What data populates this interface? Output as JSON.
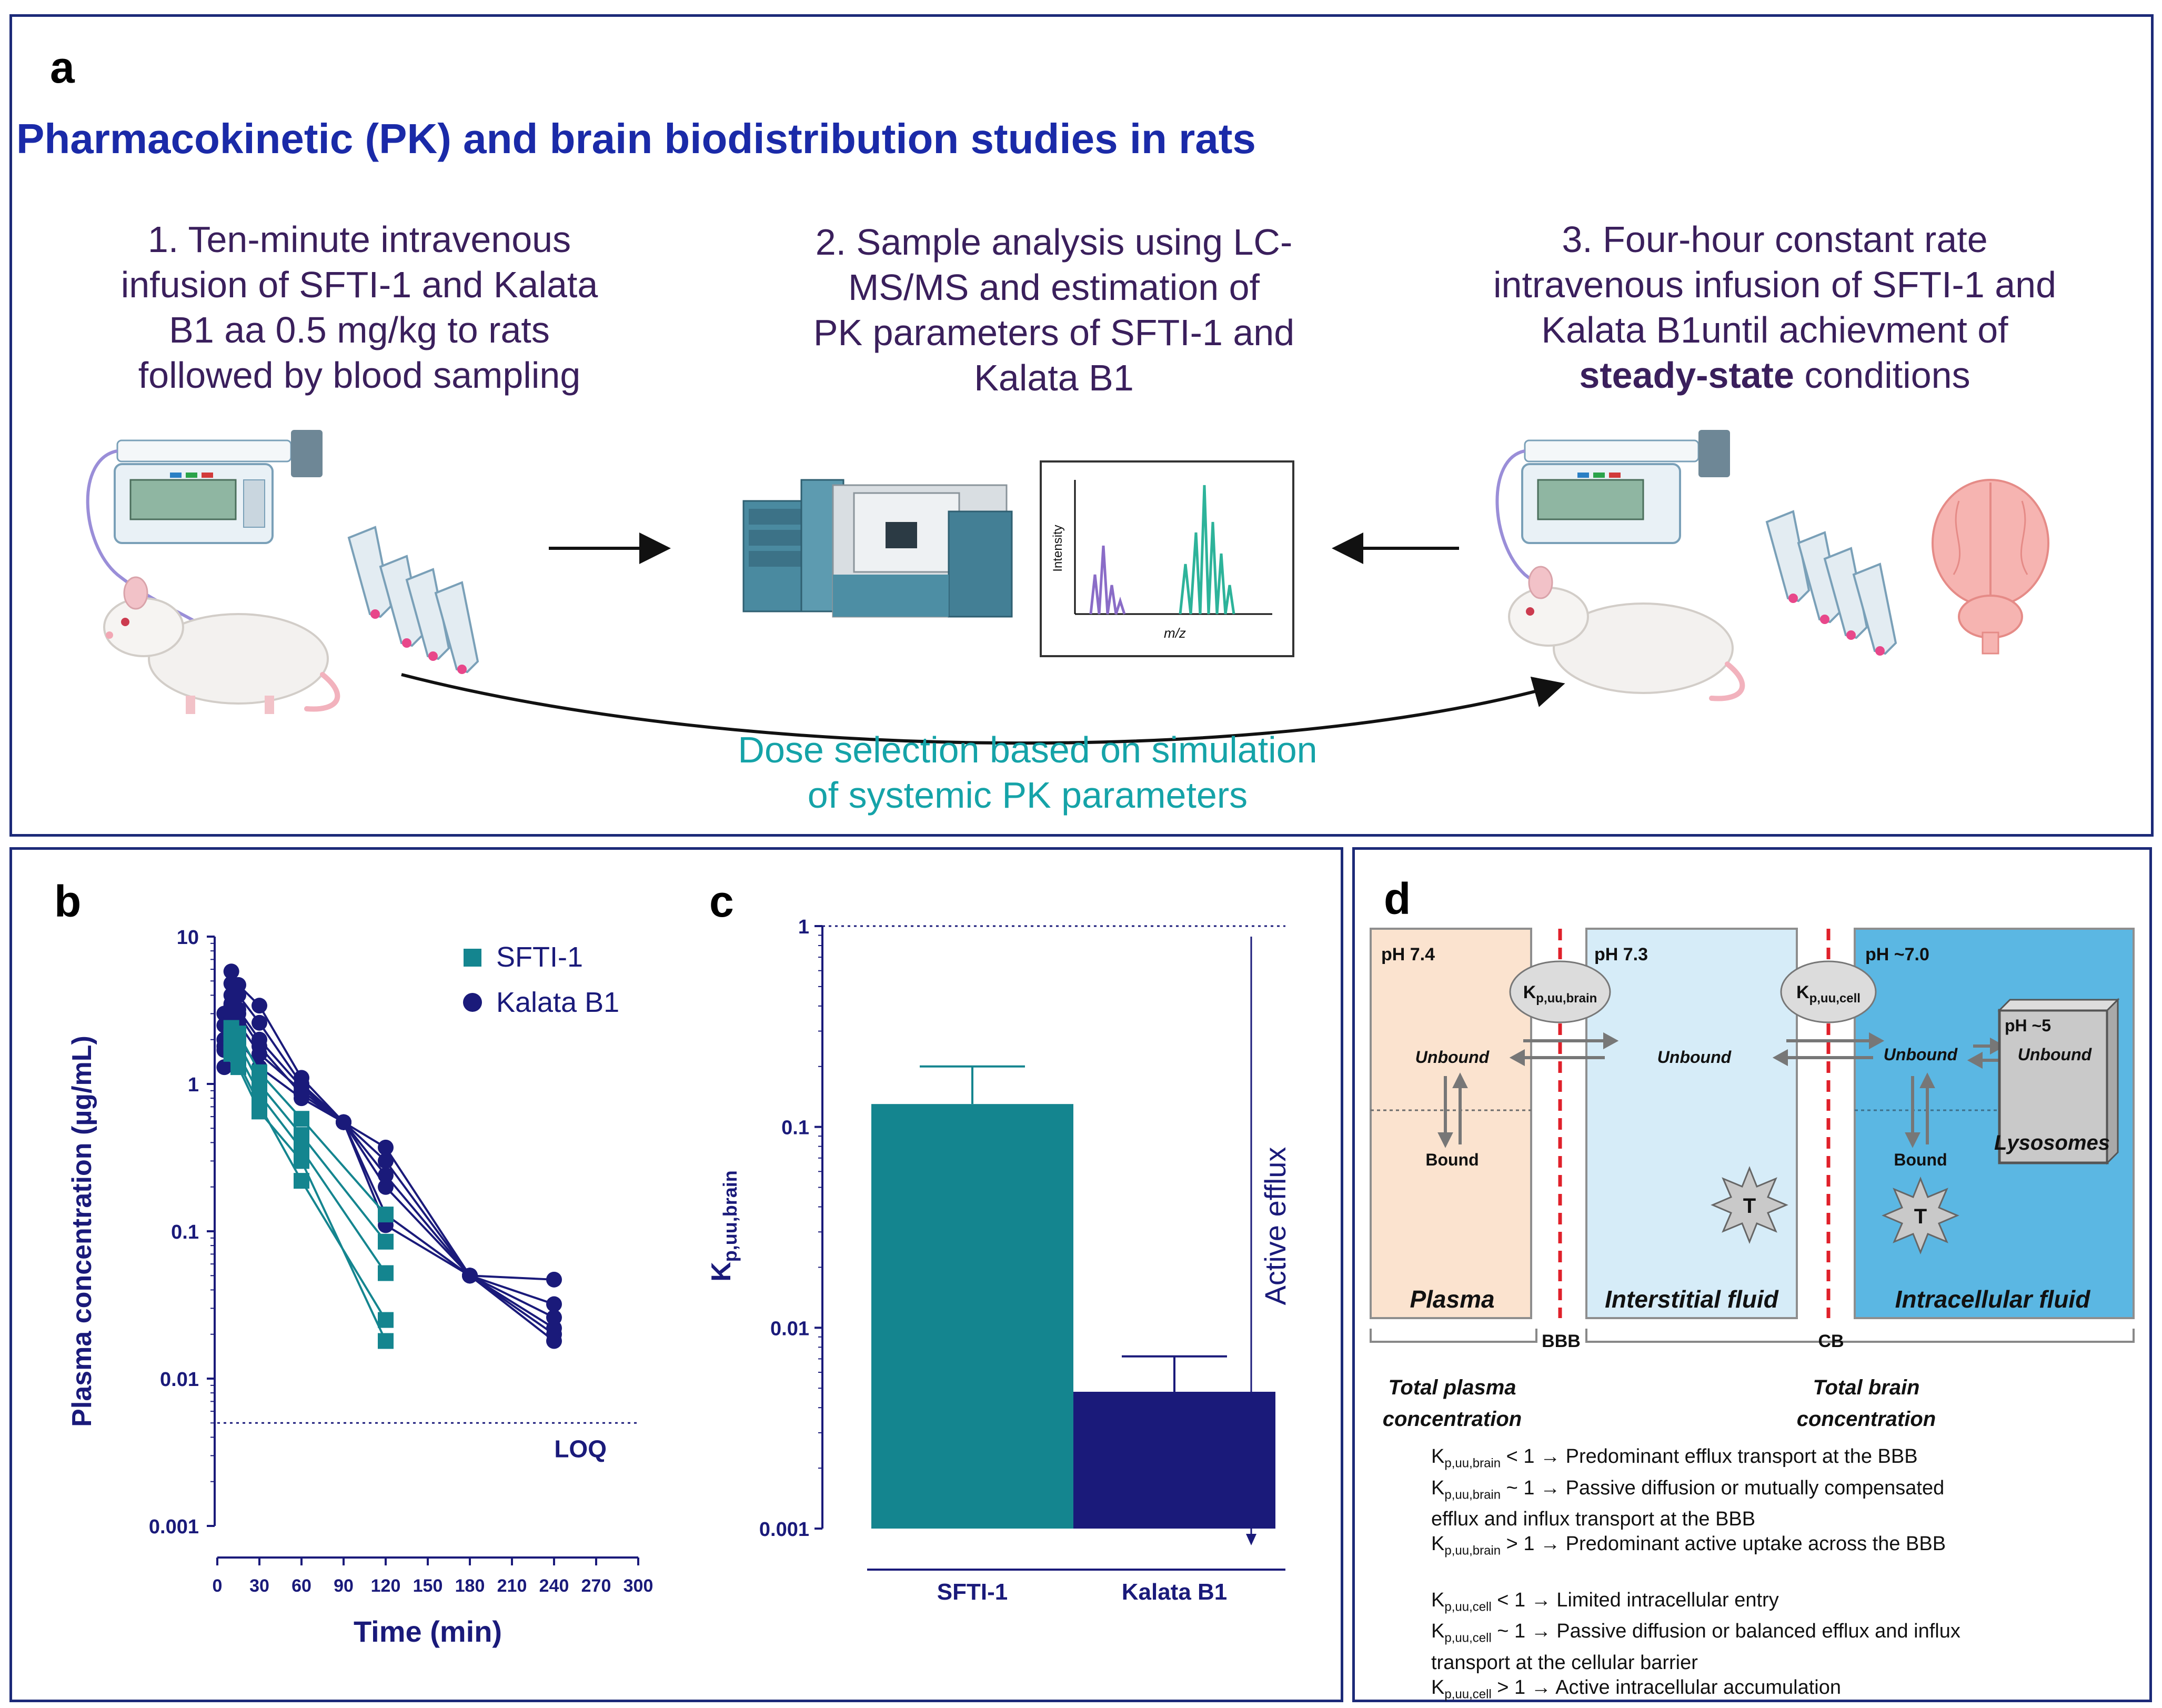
{
  "panel_a": {
    "label": "a",
    "title": "Pharmacokinetic (PK) and brain biodistribution studies in rats",
    "steps": [
      [
        "1. Ten-minute intravenous",
        "infusion of SFTI-1 and Kalata",
        "B1 aa 0.5 mg/kg to rats",
        "followed by blood sampling"
      ],
      [
        "2. Sample analysis using LC-",
        "MS/MS and estimation of",
        "PK parameters of SFTI-1 and",
        "Kalata B1"
      ],
      [
        "3. Four-hour constant rate",
        "intravenous infusion of SFTI-1 and",
        "Kalata B1until achievment of"
      ]
    ],
    "step3_bold": "steady-state",
    "step3_rest": " conditions",
    "spectrum": {
      "ylabel": "Intensity",
      "xlabel": "m/z"
    },
    "dose_selection": [
      "Dose selection based on simulation",
      "of systemic PK parameters"
    ]
  },
  "colors": {
    "teal": "#14858f",
    "navy": "#1a1a7a",
    "title_blue": "#1a2aa8",
    "step_text": "#3a1f5c",
    "dose_text": "#15a3a8"
  },
  "panel_b": {
    "label": "b",
    "loq_label": "LOQ"
  },
  "panel_c": {
    "label": "c",
    "ylabel_main": "K",
    "ylabel_sub": "p,uu,brain",
    "annotation": "Active efflux"
  },
  "chart_data": [
    {
      "type": "line",
      "title": "",
      "xlabel": "Time (min)",
      "ylabel": "Plasma concentration (µg/mL)",
      "yscale": "log",
      "ylim": [
        0.001,
        10
      ],
      "xlim": [
        0,
        300
      ],
      "xticks": [
        0,
        30,
        60,
        90,
        120,
        150,
        180,
        210,
        240,
        270,
        300
      ],
      "yticks": [
        0.001,
        0.01,
        0.1,
        1,
        10
      ],
      "ytick_labels": [
        "0.001",
        "0.01",
        "0.1",
        "1",
        "10"
      ],
      "loq": 0.005,
      "legend": [
        "SFTI-1",
        "Kalata B1"
      ],
      "series": [
        {
          "name": "SFTI-1",
          "marker": "square",
          "color": "#14858f",
          "x": [
            10,
            15,
            30,
            60,
            120
          ],
          "subjects": [
            [
              2.4,
              2.2,
              1.2,
              0.58,
              0.13
            ],
            [
              2.1,
              1.9,
              1.0,
              0.45,
              0.085
            ],
            [
              1.9,
              1.6,
              0.85,
              0.36,
              0.052
            ],
            [
              1.7,
              1.4,
              0.72,
              0.22,
              0.025
            ],
            [
              1.6,
              1.3,
              0.65,
              0.3,
              0.018
            ]
          ]
        },
        {
          "name": "Kalata B1",
          "marker": "circle",
          "color": "#1a1a7a",
          "x": [
            5,
            10,
            15,
            30,
            60,
            90,
            120,
            180,
            240
          ],
          "subjects": [
            [
              3.0,
              5.8,
              4.7,
              3.4,
              1.1,
              0.55,
              0.37,
              0.05,
              0.047
            ],
            [
              2.5,
              4.8,
              4.0,
              2.6,
              1.0,
              0.55,
              0.3,
              0.05,
              0.032
            ],
            [
              2.0,
              4.0,
              3.2,
              2.0,
              0.95,
              0.55,
              0.24,
              0.05,
              0.026
            ],
            [
              1.7,
              3.4,
              2.6,
              1.6,
              0.9,
              0.55,
              0.2,
              0.05,
              0.022
            ],
            [
              1.3,
              2.8,
              2.0,
              1.3,
              0.8,
              0.55,
              0.13,
              0.05,
              0.018
            ],
            [
              1.8,
              3.5,
              3.0,
              1.8,
              0.85,
              0.55,
              0.11,
              0.05,
              0.02
            ]
          ]
        }
      ]
    },
    {
      "type": "bar",
      "title": "",
      "xlabel": "",
      "ylabel": "Kp,uu,brain",
      "yscale": "log",
      "ylim": [
        0.001,
        1
      ],
      "yticks": [
        0.001,
        0.01,
        0.1,
        1
      ],
      "ytick_labels": [
        "0.001",
        "0.01",
        "0.1",
        "1"
      ],
      "reference_line": 1,
      "categories": [
        "SFTI-1",
        "Kalata B1"
      ],
      "values": [
        0.13,
        0.0048
      ],
      "error_upper": [
        0.2,
        0.0072
      ],
      "colors": [
        "#14858f",
        "#1a1a7a"
      ]
    }
  ],
  "panel_d": {
    "label": "d",
    "compartments": [
      {
        "ph": "pH 7.4",
        "name": "Plasma",
        "unbound": "Unbound",
        "bound": "Bound"
      },
      {
        "ph": "pH 7.3",
        "name": "Interstitial fluid",
        "unbound": "Unbound",
        "target": "T"
      },
      {
        "ph": "pH ~7.0",
        "name": "Intracellular fluid",
        "unbound": "Unbound",
        "bound": "Bound",
        "target": "T"
      }
    ],
    "lysosome": {
      "ph": "pH ~5",
      "unbound": "Unbound",
      "name": "Lysosomes"
    },
    "kp_brain_main": "K",
    "kp_brain_sub": "p,uu,brain",
    "kp_cell_main": "K",
    "kp_cell_sub": "p,uu,cell",
    "barrier_bbb": "BBB",
    "barrier_cb": "CB",
    "total_plasma": [
      "Total plasma",
      "concentration"
    ],
    "total_brain": [
      "Total brain",
      "concentration"
    ],
    "notes": [
      {
        "k": "K",
        "sub": "p,uu,brain",
        "lines": [
          " < 1 → Predominant efflux transport at the BBB"
        ]
      },
      {
        "k": "K",
        "sub": "p,uu,brain",
        "lines": [
          " ~ 1 → Passive diffusion or mutually compensated",
          "efflux and influx transport at the BBB"
        ]
      },
      {
        "k": "K",
        "sub": "p,uu,brain",
        "lines": [
          " > 1 → Predominant active uptake across the BBB"
        ]
      },
      {
        "k": "K",
        "sub": "p,uu,cell",
        "lines": [
          " < 1 → Limited intracellular entry"
        ]
      },
      {
        "k": "K",
        "sub": "p,uu,cell",
        "lines": [
          " ~ 1 → Passive diffusion or balanced efflux and influx",
          "transport at the cellular barrier"
        ]
      },
      {
        "k": "K",
        "sub": "p,uu,cell",
        "lines": [
          " > 1 → Active intracellular accumulation"
        ]
      }
    ]
  }
}
